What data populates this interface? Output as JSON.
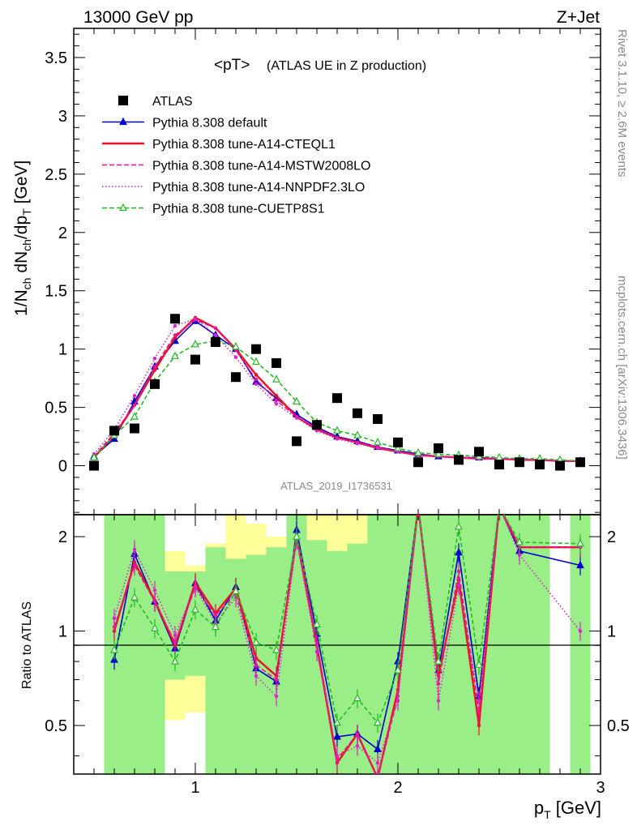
{
  "header": {
    "beam": "13000 GeV pp",
    "process": "Z+Jet",
    "plot_title": "<pT>",
    "plot_subtitle": "(ATLAS UE in Z production)",
    "analysis_tag": "ATLAS_2019_I1736531",
    "rivet_tag": "Rivet 3.1.10, ≥ 2.6M events",
    "site_tag": "mcplots.cern.ch [arXiv:1306.3436]"
  },
  "axes": {
    "xlabel": "p",
    "xlabel_sub": "T",
    "xlabel_unit": "[GeV]",
    "ylabel_main": "1/N",
    "ylabel_ratio": "Ratio to ATLAS",
    "xlim": [
      0.4,
      3.0
    ],
    "ylim_main": [
      -0.42,
      3.75
    ],
    "ylim_ratio": [
      0.35,
      2.35
    ],
    "x_ticks": [
      "1",
      "2",
      "3"
    ],
    "y_ticks_main": [
      "0",
      "0.5",
      "1",
      "1.5",
      "2",
      "2.5",
      "3",
      "3.5"
    ],
    "y_ticks_ratio": [
      "0.5",
      "1",
      "2"
    ]
  },
  "legend": [
    {
      "label": "ATLAS",
      "color": "#000000",
      "style": "marker-square"
    },
    {
      "label": "Pythia 8.308 default",
      "color": "#0000cc",
      "style": "solid-triangle"
    },
    {
      "label": "Pythia 8.308 tune-A14-CTEQL1",
      "color": "#ee1122",
      "style": "solid"
    },
    {
      "label": "Pythia 8.308 tune-A14-MSTW2008LO",
      "color": "#ee1199",
      "style": "dashed"
    },
    {
      "label": "Pythia 8.308 tune-A14-NNPDF2.3LO",
      "color": "#dd22cc",
      "style": "dotted"
    },
    {
      "label": "Pythia 8.308 tune-CUETP8S1",
      "color": "#22bb22",
      "style": "dashed-open-triangle"
    }
  ],
  "chart_data": {
    "type": "line",
    "title": "<pT>",
    "xlabel": "pT [GeV]",
    "ylabel": "1/Nch dNch/dpT [GeV]",
    "x": [
      0.5,
      0.6,
      0.7,
      0.8,
      0.9,
      1.0,
      1.1,
      1.2,
      1.3,
      1.4,
      1.5,
      1.6,
      1.7,
      1.8,
      1.9,
      2.0,
      2.1,
      2.2,
      2.3,
      2.4,
      2.5,
      2.6,
      2.7,
      2.8,
      2.9
    ],
    "data": {
      "name": "ATLAS",
      "values": [
        0.0,
        0.3,
        0.32,
        0.7,
        1.26,
        0.91,
        1.06,
        0.76,
        1.0,
        0.88,
        0.21,
        0.35,
        0.58,
        0.45,
        0.4,
        0.2,
        0.03,
        0.15,
        0.05,
        0.12,
        0.01,
        0.03,
        0.01,
        0.0,
        0.03
      ]
    },
    "series": [
      {
        "name": "Pythia 8.308 default",
        "color": "#0000cc",
        "dash": "",
        "marker": "triangle",
        "values": [
          0.08,
          0.23,
          0.55,
          0.85,
          1.07,
          1.24,
          1.12,
          1.0,
          0.72,
          0.58,
          0.44,
          0.33,
          0.25,
          0.21,
          0.16,
          0.13,
          0.1,
          0.08,
          0.07,
          0.07,
          0.06,
          0.05,
          0.05,
          0.04,
          0.04
        ]
      },
      {
        "name": "Pythia 8.308 tune-A14-CTEQL1",
        "color": "#ee1122",
        "dash": "",
        "marker": "",
        "values": [
          0.07,
          0.26,
          0.52,
          0.82,
          1.1,
          1.27,
          1.18,
          1.0,
          0.78,
          0.6,
          0.42,
          0.31,
          0.24,
          0.2,
          0.15,
          0.12,
          0.09,
          0.08,
          0.07,
          0.06,
          0.06,
          0.05,
          0.05,
          0.04,
          0.04
        ]
      },
      {
        "name": "Pythia 8.308 tune-A14-MSTW2008LO",
        "color": "#ee1199",
        "dash": "6,3",
        "marker": "",
        "values": [
          0.08,
          0.28,
          0.52,
          0.85,
          1.12,
          1.25,
          1.18,
          0.99,
          0.74,
          0.56,
          0.42,
          0.32,
          0.24,
          0.2,
          0.16,
          0.12,
          0.09,
          0.08,
          0.07,
          0.06,
          0.06,
          0.05,
          0.05,
          0.04,
          0.04
        ]
      },
      {
        "name": "Pythia 8.308 tune-A14-NNPDF2.3LO",
        "color": "#dd22cc",
        "dash": "1.5,2.5",
        "marker": "",
        "values": [
          0.1,
          0.31,
          0.6,
          0.92,
          1.2,
          1.26,
          1.12,
          0.93,
          0.7,
          0.53,
          0.41,
          0.3,
          0.23,
          0.19,
          0.15,
          0.12,
          0.09,
          0.08,
          0.07,
          0.06,
          0.06,
          0.05,
          0.05,
          0.04,
          0.04
        ]
      },
      {
        "name": "Pythia 8.308 tune-CUETP8S1",
        "color": "#22bb22",
        "dash": "5,3",
        "marker": "open-triangle",
        "values": [
          0.07,
          0.26,
          0.42,
          0.72,
          0.94,
          1.04,
          1.07,
          1.02,
          0.89,
          0.74,
          0.55,
          0.37,
          0.3,
          0.26,
          0.2,
          0.15,
          0.11,
          0.1,
          0.09,
          0.08,
          0.07,
          0.06,
          0.06,
          0.05,
          0.04
        ]
      }
    ],
    "ratio": {
      "ylabel": "Ratio to ATLAS",
      "reference": 1.0,
      "x": [
        0.6,
        0.7,
        0.8,
        0.9,
        1.0,
        1.1,
        1.2,
        1.3,
        1.4,
        1.5,
        1.6,
        1.7,
        1.8,
        1.9,
        2.0,
        2.1,
        2.2,
        2.3,
        2.4,
        2.5,
        2.6,
        2.9
      ],
      "series": [
        {
          "name": "Pythia 8.308 default",
          "values": [
            0.81,
            1.76,
            1.24,
            0.88,
            1.42,
            1.08,
            1.38,
            0.76,
            0.69,
            2.1,
            0.98,
            0.46,
            0.47,
            0.42,
            0.8,
            3.2,
            0.75,
            1.78,
            0.62,
            3.2,
            1.8,
            1.62
          ]
        },
        {
          "name": "Pythia 8.308 tune-A14-CTEQL1",
          "values": [
            1.0,
            1.66,
            1.25,
            0.9,
            1.43,
            1.14,
            1.37,
            0.82,
            0.72,
            2.0,
            0.9,
            0.38,
            0.47,
            0.34,
            0.65,
            3.2,
            0.72,
            1.45,
            0.5,
            3.2,
            1.85,
            1.85
          ]
        },
        {
          "name": "Pythia 8.308 tune-A14-MSTW2008LO",
          "values": [
            1.03,
            1.62,
            1.24,
            0.92,
            1.38,
            1.12,
            1.32,
            0.78,
            0.7,
            2.0,
            0.92,
            0.39,
            0.47,
            0.34,
            0.62,
            3.2,
            0.68,
            1.55,
            0.55,
            3.2,
            1.85,
            1.85
          ]
        },
        {
          "name": "Pythia 8.308 tune-A14-NNPDF2.3LO",
          "values": [
            1.1,
            1.82,
            1.35,
            0.97,
            1.38,
            1.06,
            1.28,
            0.72,
            0.62,
            1.95,
            0.86,
            0.4,
            0.43,
            0.38,
            0.6,
            3.2,
            0.6,
            1.4,
            0.6,
            3.2,
            1.75,
            1.0
          ]
        },
        {
          "name": "Pythia 8.308 tune-CUETP8S1",
          "values": [
            0.87,
            1.28,
            1.02,
            0.8,
            1.17,
            1.03,
            1.34,
            0.92,
            0.87,
            2.0,
            1.05,
            0.51,
            0.61,
            0.51,
            0.75,
            3.2,
            0.8,
            2.15,
            0.78,
            3.2,
            1.92,
            1.9
          ]
        }
      ],
      "bands": [
        {
          "x0": 0.55,
          "x1": 0.65,
          "g0": 0.3,
          "g1": 2.35,
          "y0": 0.3,
          "y1": 2.35
        },
        {
          "x0": 0.65,
          "x1": 0.75,
          "g0": 0.3,
          "g1": 2.35,
          "y0": 0.3,
          "y1": 2.35
        },
        {
          "x0": 0.75,
          "x1": 0.85,
          "g0": 0.3,
          "g1": 2.35,
          "y0": 0.3,
          "y1": 2.35
        },
        {
          "x0": 0.85,
          "x1": 0.95,
          "g0": 0.7,
          "g1": 1.55,
          "y0": 0.52,
          "y1": 1.8
        },
        {
          "x0": 0.95,
          "x1": 1.05,
          "g0": 0.72,
          "g1": 1.55,
          "y0": 0.55,
          "y1": 1.62
        },
        {
          "x0": 1.05,
          "x1": 1.15,
          "g0": 0.3,
          "g1": 1.85,
          "y0": 0.3,
          "y1": 1.9
        },
        {
          "x0": 1.15,
          "x1": 1.25,
          "g0": 0.3,
          "g1": 1.7,
          "y0": 0.3,
          "y1": 2.35
        },
        {
          "x0": 1.25,
          "x1": 1.35,
          "g0": 0.3,
          "g1": 1.75,
          "y0": 0.3,
          "y1": 2.2
        },
        {
          "x0": 1.35,
          "x1": 1.45,
          "g0": 0.3,
          "g1": 1.85,
          "y0": 0.3,
          "y1": 2.0
        },
        {
          "x0": 1.45,
          "x1": 1.55,
          "g0": 0.3,
          "g1": 2.35,
          "y0": 0.3,
          "y1": 2.35
        },
        {
          "x0": 1.55,
          "x1": 1.65,
          "g0": 0.3,
          "g1": 1.95,
          "y0": 0.3,
          "y1": 2.35
        },
        {
          "x0": 1.65,
          "x1": 1.75,
          "g0": 0.3,
          "g1": 1.8,
          "y0": 0.3,
          "y1": 2.35
        },
        {
          "x0": 1.75,
          "x1": 1.85,
          "g0": 0.3,
          "g1": 1.9,
          "y0": 0.3,
          "y1": 2.35
        },
        {
          "x0": 1.85,
          "x1": 1.95,
          "g0": 0.3,
          "g1": 2.35,
          "y0": 0.3,
          "y1": 2.35
        },
        {
          "x0": 1.95,
          "x1": 2.05,
          "g0": 0.3,
          "g1": 2.35,
          "y0": 0.3,
          "y1": 2.35
        },
        {
          "x0": 2.05,
          "x1": 2.15,
          "g0": 0.3,
          "g1": 2.35,
          "y0": 0.3,
          "y1": 2.35
        },
        {
          "x0": 2.15,
          "x1": 2.25,
          "g0": 0.3,
          "g1": 2.35,
          "y0": 0.3,
          "y1": 2.35
        },
        {
          "x0": 2.25,
          "x1": 2.35,
          "g0": 0.3,
          "g1": 2.35,
          "y0": 0.3,
          "y1": 2.35
        },
        {
          "x0": 2.35,
          "x1": 2.45,
          "g0": 0.3,
          "g1": 2.35,
          "y0": 0.3,
          "y1": 2.35
        },
        {
          "x0": 2.45,
          "x1": 2.55,
          "g0": 0.3,
          "g1": 2.35,
          "y0": 0.3,
          "y1": 2.35
        },
        {
          "x0": 2.55,
          "x1": 2.65,
          "g0": 0.3,
          "g1": 2.35,
          "y0": 0.3,
          "y1": 2.35
        },
        {
          "x0": 2.65,
          "x1": 2.75,
          "g0": 0.3,
          "g1": 2.35,
          "y0": 0.3,
          "y1": 2.35
        },
        {
          "x0": 2.85,
          "x1": 2.95,
          "g0": 0.3,
          "g1": 2.35,
          "y0": 0.3,
          "y1": 2.35
        }
      ]
    },
    "xlim": [
      0.4,
      3.0
    ],
    "ylim": [
      -0.42,
      3.75
    ]
  }
}
